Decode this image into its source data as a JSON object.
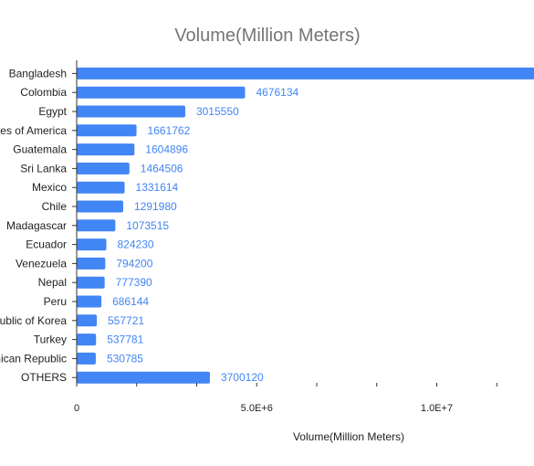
{
  "chart_data": {
    "type": "bar",
    "orientation": "horizontal",
    "title": "Volume(Million Meters)",
    "xlabel": "Volume(Million Meters)",
    "ylabel": "",
    "categories": [
      "Bangladesh",
      "Colombia",
      "Egypt",
      "United States of America",
      "Guatemala",
      "Sri Lanka",
      "Mexico",
      "Chile",
      "Madagascar",
      "Ecuador",
      "Venezuela",
      "Nepal",
      "Peru",
      "Republic of Korea",
      "Turkey",
      "Dominican Republic",
      "OTHERS"
    ],
    "values": [
      13000000,
      4676134,
      3015550,
      1661762,
      1604896,
      1464506,
      1331614,
      1291980,
      1073515,
      824230,
      794200,
      777390,
      686144,
      557721,
      537781,
      530785,
      3700120
    ],
    "value_labels": [
      "",
      "4676134",
      "3015550",
      "1661762",
      "1604896",
      "1464506",
      "1331614",
      "1291980",
      "1073515",
      "824230",
      "794200",
      "777390",
      "686144",
      "557721",
      "537781",
      "530785",
      "3700120"
    ],
    "xticks": [
      "0",
      "5.0E+6",
      "1.0E+7"
    ],
    "xtick_values": [
      0,
      5000000,
      10000000
    ],
    "xlim": [
      0,
      12700000
    ],
    "bar_color": "#4285f4",
    "label_color": "#4285f4",
    "grid": false,
    "legend": "none"
  }
}
